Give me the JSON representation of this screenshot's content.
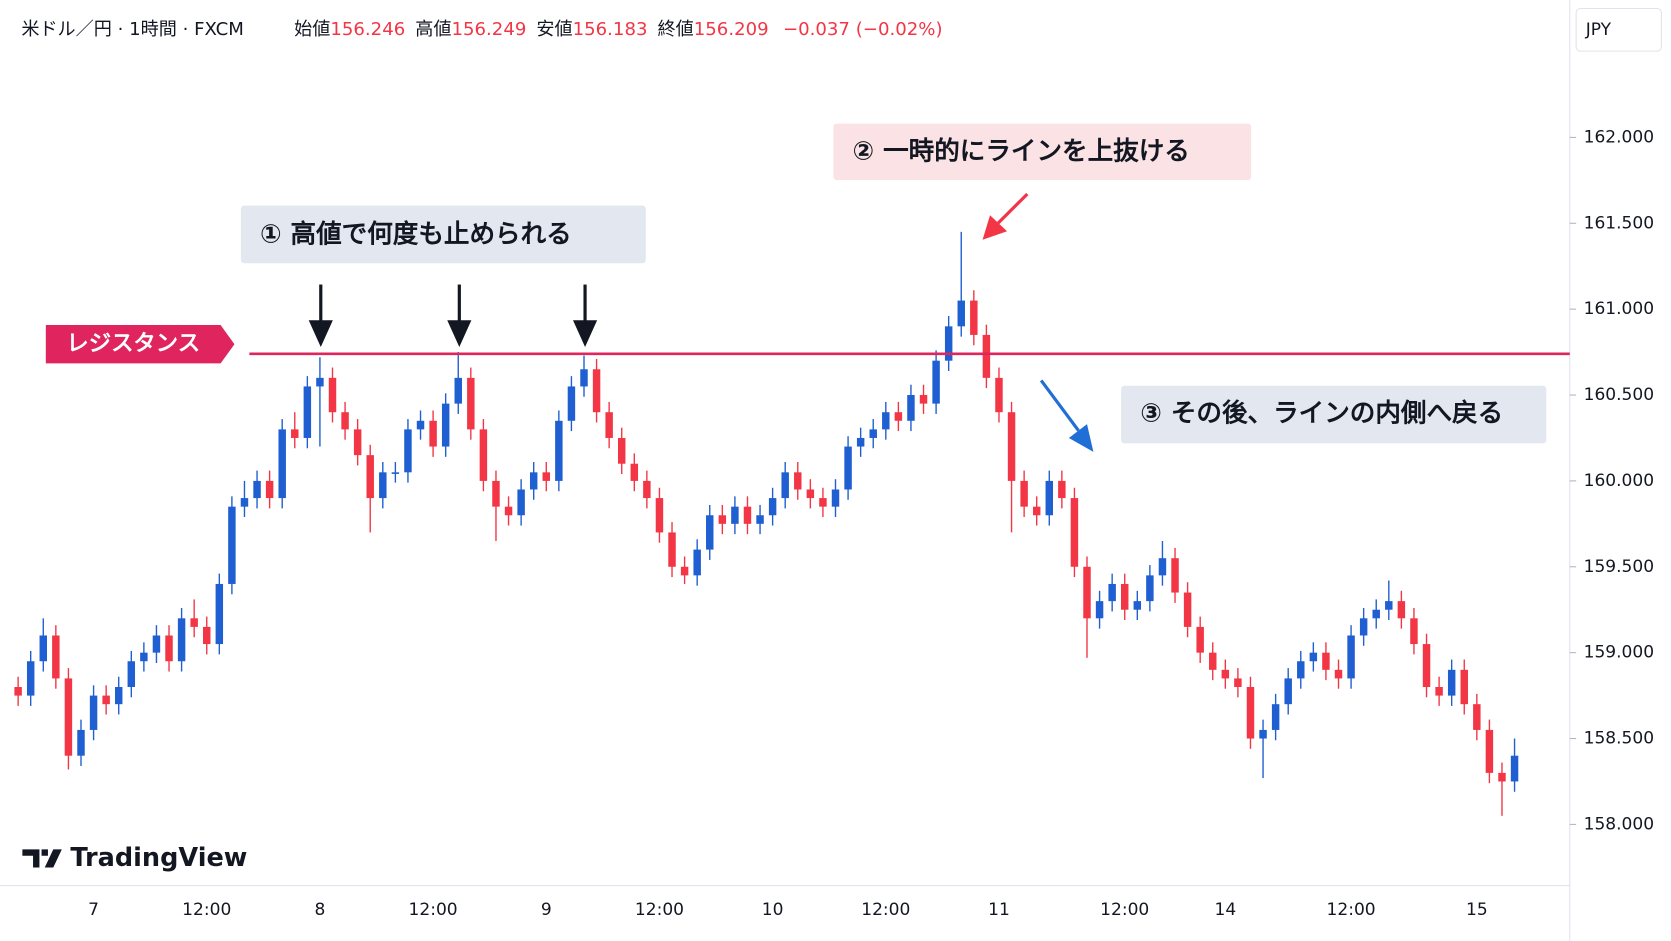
{
  "chart_data": {
    "type": "candlestick",
    "title": "米ドル／円 · 1時間 · FXCM",
    "ohlc_legend": [
      {
        "label": "始値",
        "value": "156.246"
      },
      {
        "label": "高値",
        "value": "156.249"
      },
      {
        "label": "安値",
        "value": "156.183"
      },
      {
        "label": "終値",
        "value": "156.209"
      }
    ],
    "change": "−0.037 (−0.02%)",
    "currency": "JPY",
    "logo": "TradingView",
    "up_color": "#1f5fd1",
    "down_color": "#f23645",
    "categories": [
      null,
      null,
      null,
      null,
      null,
      null,
      "7",
      null,
      null,
      null,
      null,
      null,
      null,
      null,
      null,
      "12:00",
      null,
      null,
      null,
      null,
      null,
      null,
      null,
      null,
      "8",
      null,
      null,
      null,
      null,
      null,
      null,
      null,
      null,
      "12:00",
      null,
      null,
      null,
      null,
      null,
      null,
      null,
      null,
      "9",
      null,
      null,
      null,
      null,
      null,
      null,
      null,
      null,
      "12:00",
      null,
      null,
      null,
      null,
      null,
      null,
      null,
      null,
      "10",
      null,
      null,
      null,
      null,
      null,
      null,
      null,
      null,
      "12:00",
      null,
      null,
      null,
      null,
      null,
      null,
      null,
      null,
      "11",
      null,
      null,
      null,
      null,
      null,
      null,
      null,
      null,
      null,
      "12:00",
      null,
      null,
      null,
      null,
      null,
      null,
      null,
      "14",
      null,
      null,
      null,
      null,
      null,
      null,
      null,
      null,
      null,
      "12:00",
      null,
      null,
      null,
      null,
      null,
      null,
      null,
      null,
      null,
      "15",
      null,
      null,
      null
    ],
    "open": [
      158.8,
      158.75,
      158.95,
      159.1,
      158.85,
      158.4,
      158.55,
      158.75,
      158.7,
      158.8,
      158.95,
      159.0,
      159.1,
      158.95,
      159.2,
      159.15,
      159.05,
      159.4,
      159.85,
      159.9,
      160.0,
      159.9,
      160.3,
      160.25,
      160.55,
      160.6,
      160.4,
      160.3,
      160.15,
      159.9,
      160.05,
      160.05,
      160.3,
      160.35,
      160.2,
      160.45,
      160.6,
      160.3,
      160.0,
      159.85,
      159.8,
      159.95,
      160.05,
      160.0,
      160.35,
      160.55,
      160.65,
      160.4,
      160.25,
      160.1,
      160.0,
      159.9,
      159.7,
      159.5,
      159.45,
      159.6,
      159.8,
      159.75,
      159.85,
      159.75,
      159.8,
      159.9,
      160.05,
      159.95,
      159.9,
      159.85,
      159.95,
      160.2,
      160.25,
      160.3,
      160.4,
      160.35,
      160.5,
      160.45,
      160.7,
      160.9,
      161.05,
      160.85,
      160.6,
      160.4,
      160.0,
      159.85,
      159.8,
      160.0,
      159.9,
      159.5,
      159.2,
      159.3,
      159.4,
      159.25,
      159.3,
      159.45,
      159.55,
      159.35,
      159.15,
      159.0,
      158.9,
      158.85,
      158.8,
      158.5,
      158.55,
      158.7,
      158.85,
      158.95,
      159.0,
      158.9,
      158.85,
      159.1,
      159.2,
      159.25,
      159.3,
      159.2,
      159.05,
      158.8,
      158.75,
      158.9,
      158.7,
      158.55,
      158.3,
      158.25
    ],
    "high": [
      158.86,
      159.01,
      159.2,
      159.16,
      158.91,
      158.61,
      158.81,
      158.81,
      158.86,
      159.01,
      159.06,
      159.16,
      159.16,
      159.26,
      159.31,
      159.21,
      159.46,
      159.91,
      160.0,
      160.06,
      160.06,
      160.36,
      160.4,
      160.61,
      160.72,
      160.66,
      160.46,
      160.36,
      160.21,
      160.11,
      160.11,
      160.36,
      160.41,
      160.41,
      160.51,
      160.75,
      160.66,
      160.36,
      160.06,
      159.91,
      160.01,
      160.11,
      160.11,
      160.41,
      160.61,
      160.73,
      160.71,
      160.46,
      160.31,
      160.16,
      160.06,
      159.96,
      159.76,
      159.56,
      159.66,
      159.86,
      159.86,
      159.91,
      159.91,
      159.86,
      159.96,
      160.11,
      160.11,
      160.01,
      159.96,
      160.01,
      160.26,
      160.31,
      160.36,
      160.46,
      160.46,
      160.56,
      160.56,
      160.76,
      160.96,
      161.45,
      161.11,
      160.91,
      160.66,
      160.46,
      160.06,
      159.91,
      160.06,
      160.06,
      159.96,
      159.56,
      159.36,
      159.46,
      159.46,
      159.36,
      159.51,
      159.65,
      159.61,
      159.41,
      159.21,
      159.06,
      158.96,
      158.91,
      158.86,
      158.61,
      158.76,
      158.91,
      159.01,
      159.06,
      159.06,
      158.96,
      159.16,
      159.26,
      159.31,
      159.42,
      159.36,
      159.26,
      159.11,
      158.86,
      158.96,
      158.96,
      158.76,
      158.61,
      158.36,
      158.5
    ],
    "low": [
      158.69,
      158.69,
      158.89,
      158.79,
      158.32,
      158.34,
      158.49,
      158.64,
      158.64,
      158.74,
      158.89,
      158.94,
      158.89,
      158.89,
      159.09,
      158.99,
      158.99,
      159.34,
      159.79,
      159.84,
      159.84,
      159.84,
      160.19,
      160.19,
      160.2,
      160.34,
      160.24,
      160.09,
      159.7,
      159.84,
      159.99,
      159.99,
      160.24,
      160.14,
      160.14,
      160.39,
      160.24,
      159.94,
      159.65,
      159.74,
      159.74,
      159.89,
      159.94,
      159.94,
      160.29,
      160.49,
      160.34,
      160.19,
      160.04,
      159.94,
      159.84,
      159.64,
      159.44,
      159.4,
      159.39,
      159.54,
      159.69,
      159.69,
      159.69,
      159.69,
      159.74,
      159.84,
      159.89,
      159.84,
      159.79,
      159.79,
      159.89,
      160.14,
      160.19,
      160.24,
      160.29,
      160.29,
      160.39,
      160.39,
      160.64,
      160.84,
      160.79,
      160.54,
      160.34,
      159.7,
      159.79,
      159.74,
      159.74,
      159.84,
      159.44,
      158.97,
      159.14,
      159.24,
      159.19,
      159.19,
      159.24,
      159.39,
      159.29,
      159.09,
      158.94,
      158.84,
      158.79,
      158.74,
      158.44,
      158.27,
      158.49,
      158.64,
      158.79,
      158.89,
      158.84,
      158.79,
      158.79,
      159.04,
      159.14,
      159.19,
      159.14,
      158.99,
      158.74,
      158.69,
      158.69,
      158.64,
      158.49,
      158.24,
      158.05,
      158.19
    ],
    "close": [
      158.75,
      158.95,
      159.1,
      158.85,
      158.4,
      158.55,
      158.75,
      158.7,
      158.8,
      158.95,
      159.0,
      159.1,
      158.95,
      159.2,
      159.15,
      159.05,
      159.4,
      159.85,
      159.9,
      160.0,
      159.9,
      160.3,
      160.25,
      160.55,
      160.6,
      160.4,
      160.3,
      160.15,
      159.9,
      160.05,
      160.05,
      160.3,
      160.35,
      160.2,
      160.45,
      160.6,
      160.3,
      160.0,
      159.85,
      159.8,
      159.95,
      160.05,
      160.0,
      160.35,
      160.55,
      160.65,
      160.4,
      160.25,
      160.1,
      160.0,
      159.9,
      159.7,
      159.5,
      159.45,
      159.6,
      159.8,
      159.75,
      159.85,
      159.75,
      159.8,
      159.9,
      160.05,
      159.95,
      159.9,
      159.85,
      159.95,
      160.2,
      160.25,
      160.3,
      160.4,
      160.35,
      160.5,
      160.45,
      160.7,
      160.9,
      161.05,
      160.85,
      160.6,
      160.4,
      160.0,
      159.85,
      159.8,
      160.0,
      159.9,
      159.5,
      159.2,
      159.3,
      159.4,
      159.25,
      159.3,
      159.45,
      159.55,
      159.35,
      159.15,
      159.0,
      158.9,
      158.85,
      158.8,
      158.5,
      158.55,
      158.7,
      158.85,
      158.95,
      159.0,
      158.9,
      158.85,
      159.1,
      159.2,
      159.25,
      159.3,
      159.2,
      159.05,
      158.8,
      158.75,
      158.9,
      158.7,
      158.55,
      158.3,
      158.25,
      158.4
    ],
    "ylim": [
      157.65,
      162.8
    ],
    "yticks": [
      {
        "value": 158,
        "label": "158.000"
      },
      {
        "value": 158.5,
        "label": "158.500"
      },
      {
        "value": 159,
        "label": "159.000"
      },
      {
        "value": 159.5,
        "label": "159.500"
      },
      {
        "value": 160,
        "label": "160.000"
      },
      {
        "value": 160.5,
        "label": "160.500"
      },
      {
        "value": 161,
        "label": "161.000"
      },
      {
        "value": 161.5,
        "label": "161.500"
      },
      {
        "value": 162,
        "label": "162.000"
      }
    ],
    "resistance": {
      "label": "レジスタンス",
      "value": 160.74,
      "color": "#e0245e"
    },
    "annotations": [
      "① 高値で何度も止められる",
      "② 一時的にラインを上抜ける",
      "③ その後、ラインの内側へ戻る"
    ]
  }
}
